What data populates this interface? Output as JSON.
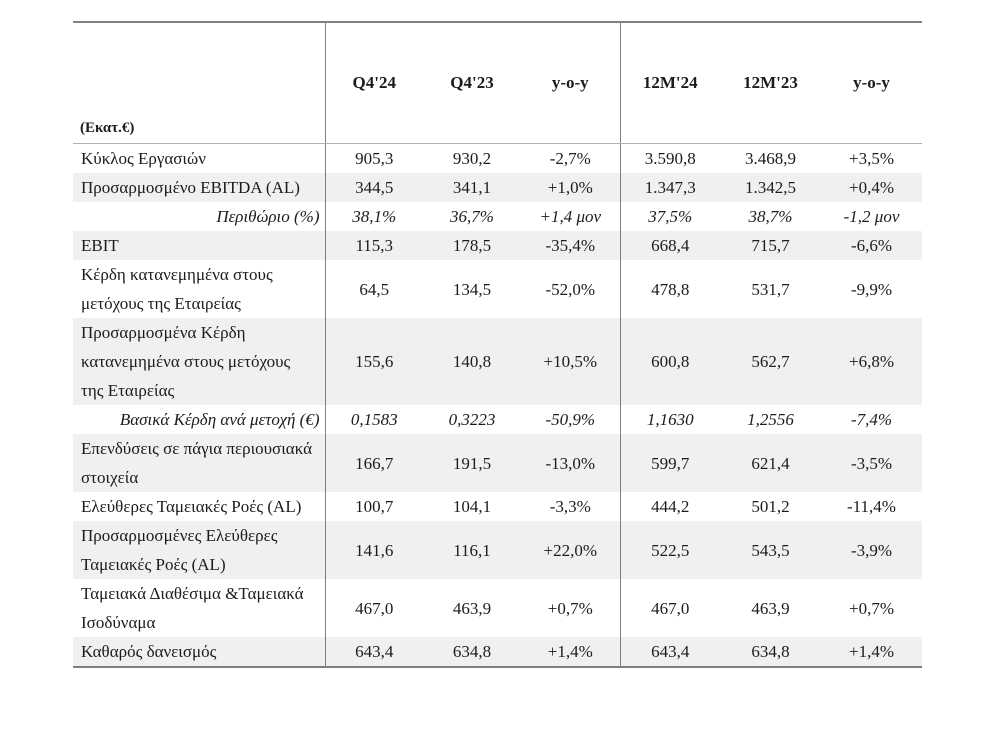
{
  "table": {
    "unit_label": "(Εκατ.€)",
    "columns": [
      "Q4'24",
      "Q4'23",
      "y-o-y",
      "12M'24",
      "12M'23",
      "y-o-y"
    ],
    "rows": [
      {
        "label": "Κύκλος Εργασιών",
        "style": "normal",
        "values": [
          "905,3",
          "930,2",
          "-2,7%",
          "3.590,8",
          "3.468,9",
          "+3,5%"
        ]
      },
      {
        "label": "Προσαρμοσμένο EBITDA (AL)",
        "style": "normal",
        "values": [
          "344,5",
          "341,1",
          "+1,0%",
          "1.347,3",
          "1.342,5",
          "+0,4%"
        ]
      },
      {
        "label": "Περιθώριο (%)",
        "style": "sub-italic",
        "values": [
          "38,1%",
          "36,7%",
          "+1,4 μον",
          "37,5%",
          "38,7%",
          "-1,2 μον"
        ]
      },
      {
        "label": "EBIT",
        "style": "normal",
        "values": [
          "115,3",
          "178,5",
          "-35,4%",
          "668,4",
          "715,7",
          "-6,6%"
        ]
      },
      {
        "label": "Κέρδη κατανεμημένα στους μετόχους της Εταιρείας",
        "style": "normal",
        "values": [
          "64,5",
          "134,5",
          "-52,0%",
          "478,8",
          "531,7",
          "-9,9%"
        ]
      },
      {
        "label": "Προσαρμοσμένα Κέρδη κατανεμημένα στους μετόχους της Εταιρείας",
        "style": "normal",
        "values": [
          "155,6",
          "140,8",
          "+10,5%",
          "600,8",
          "562,7",
          "+6,8%"
        ]
      },
      {
        "label": "Βασικά Κέρδη ανά μετοχή (€)",
        "style": "sub-italic",
        "values": [
          "0,1583",
          "0,3223",
          "-50,9%",
          "1,1630",
          "1,2556",
          "-7,4%"
        ]
      },
      {
        "label": "Επενδύσεις σε πάγια περιουσιακά στοιχεία",
        "style": "normal",
        "values": [
          "166,7",
          "191,5",
          "-13,0%",
          "599,7",
          "621,4",
          "-3,5%"
        ]
      },
      {
        "label": "Ελεύθερες Ταμειακές Ροές (AL)",
        "style": "normal",
        "values": [
          "100,7",
          "104,1",
          "-3,3%",
          "444,2",
          "501,2",
          "-11,4%"
        ]
      },
      {
        "label": "Προσαρμοσμένες Ελεύθερες Ταμειακές Ροές (AL)",
        "style": "normal",
        "values": [
          "141,6",
          "116,1",
          "+22,0%",
          "522,5",
          "543,5",
          "-3,9%"
        ]
      },
      {
        "label": "Ταμειακά Διαθέσιμα &Ταμειακά Ισοδύναμα",
        "style": "normal",
        "values": [
          "467,0",
          "463,9",
          "+0,7%",
          "467,0",
          "463,9",
          "+0,7%"
        ]
      },
      {
        "label": "Καθαρός δανεισμός",
        "style": "normal",
        "values": [
          "643,4",
          "634,8",
          "+1,4%",
          "643,4",
          "634,8",
          "+1,4%"
        ]
      }
    ],
    "colors": {
      "stripe": "#f0f0f0",
      "border_dark": "#7f7f7f",
      "border_light": "#b0b0b0",
      "text": "#1c1c1c"
    }
  }
}
